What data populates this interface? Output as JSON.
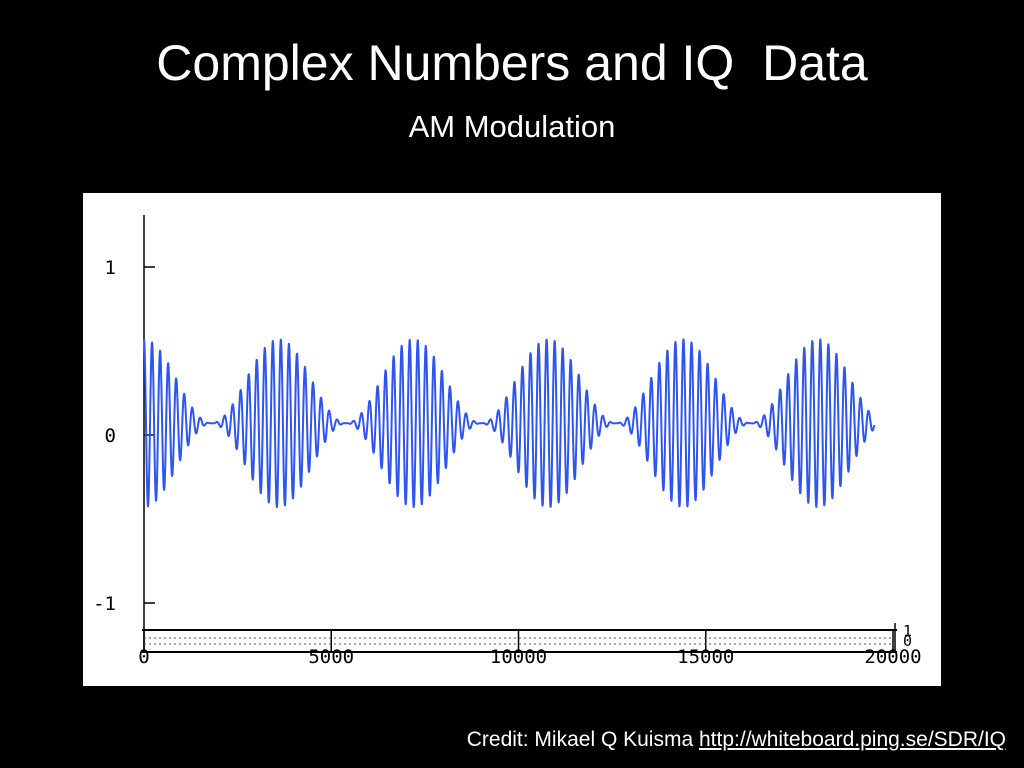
{
  "slide": {
    "title": "Complex Numbers and IQ  Data",
    "subtitle": "AM Modulation"
  },
  "credit": {
    "text": "Credit: Mikael Q Kuisma",
    "link": "http://whiteboard.ping.se/SDR/IQ"
  },
  "chart_data": {
    "type": "line",
    "title": "",
    "xlabel": "",
    "ylabel": "",
    "xlim": [
      0,
      20000
    ],
    "ylim": [
      -1.25,
      1.25
    ],
    "x_ticks": [
      0,
      5000,
      10000,
      15000,
      20000
    ],
    "x_tick_labels": [
      "0",
      "5000",
      "10000",
      "15000",
      "20000"
    ],
    "y_ticks": [
      1,
      0,
      -1
    ],
    "y_tick_labels": [
      "1",
      "0",
      "-1"
    ],
    "lower_panel_tick_labels": [
      "1",
      "0"
    ],
    "grid": false,
    "series": [
      {
        "color": "#2f55ee",
        "description": "AM modulated carrier",
        "offset": 0.07,
        "carrier_amplitude": 0.5,
        "envelope_period": 3600,
        "envelope_peak_x": [
          0,
          3600,
          7200,
          10800,
          14400,
          18000
        ],
        "carrier_period": 215,
        "x_end": 19500
      }
    ],
    "colors": {
      "line": "#2f55ee",
      "axes": "#000000",
      "background": "#ffffff"
    }
  }
}
